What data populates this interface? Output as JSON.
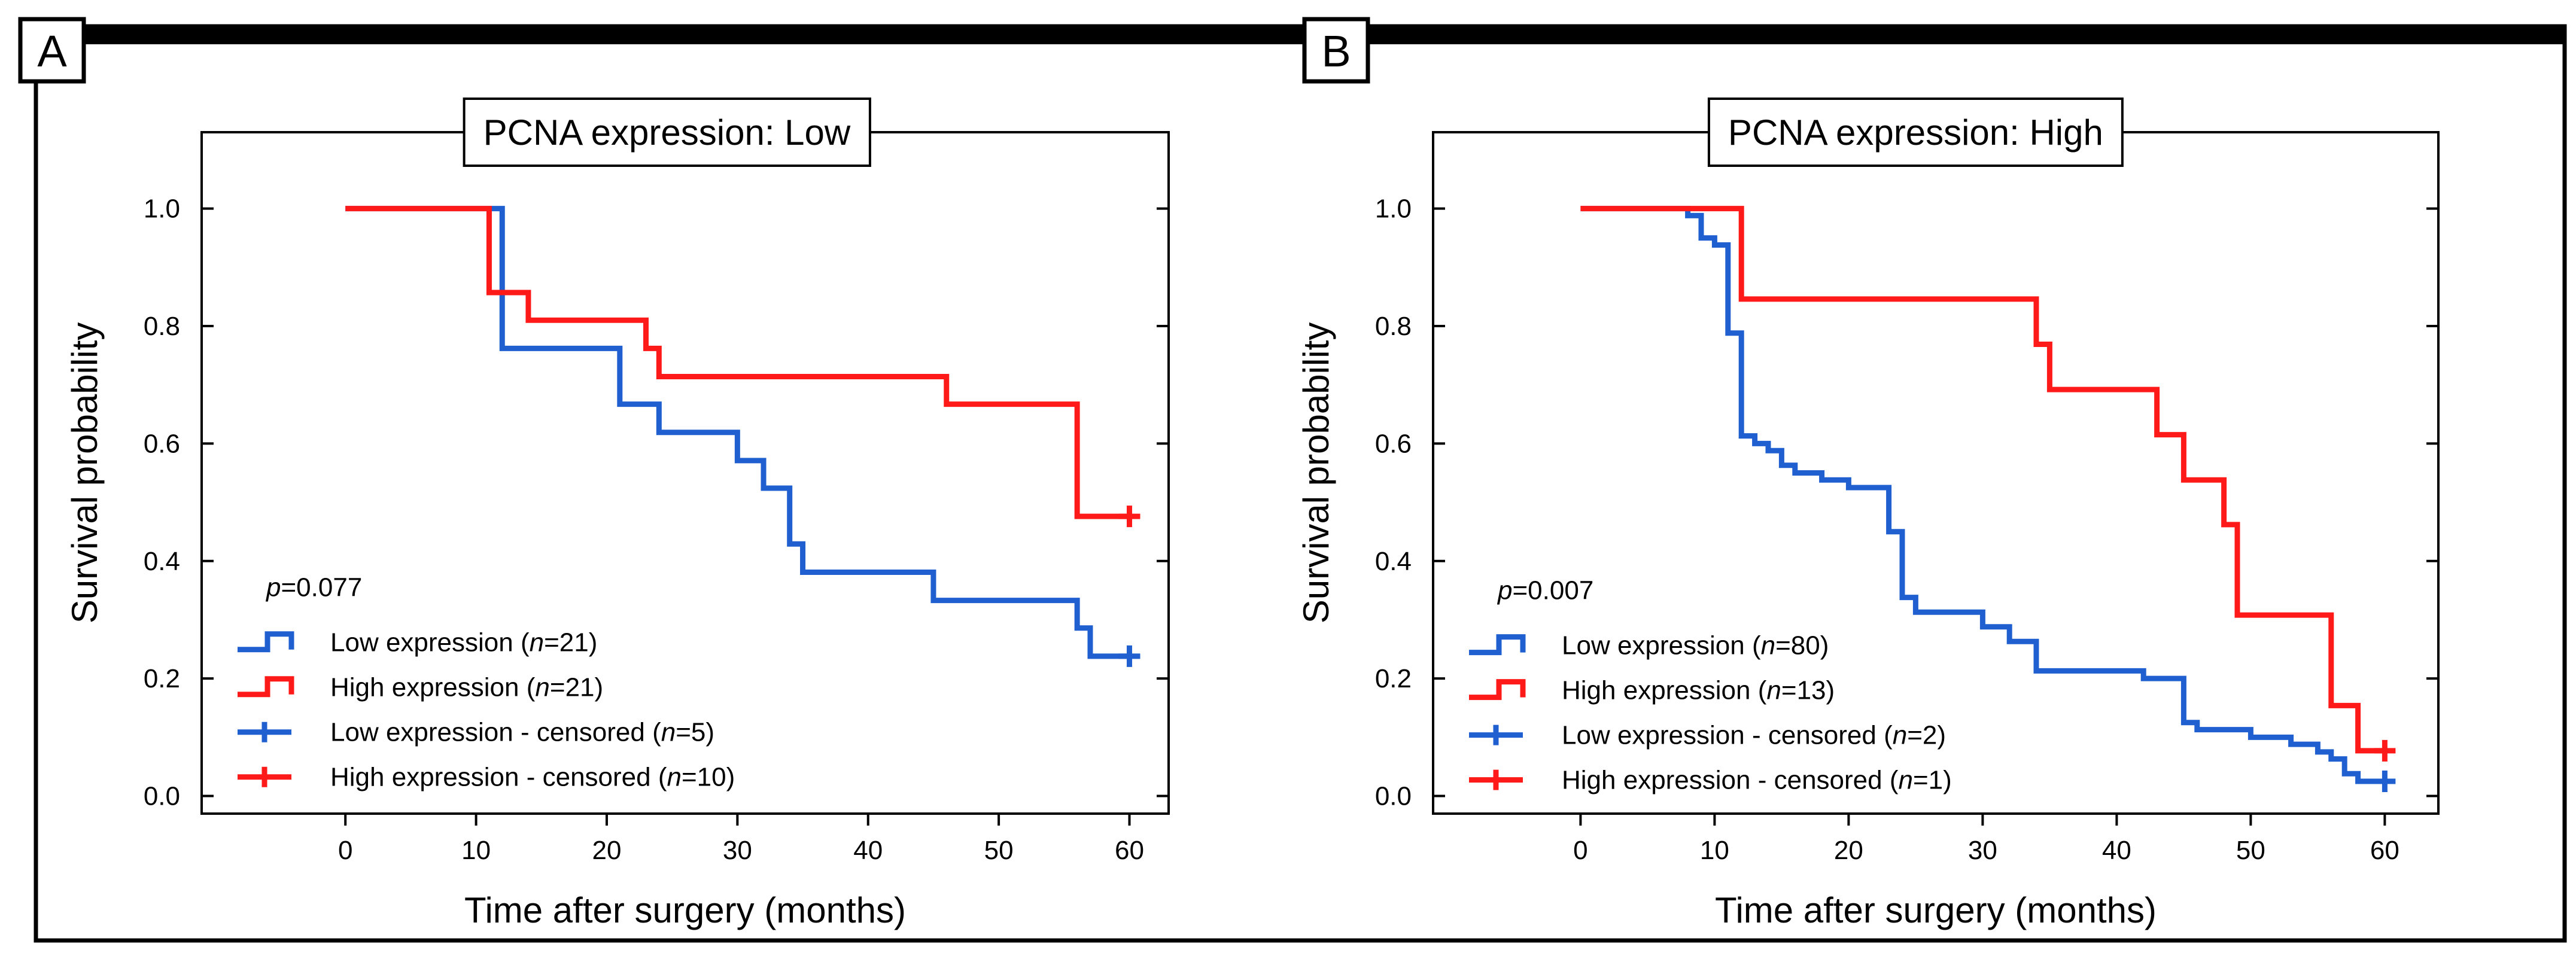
{
  "chart_data": [
    {
      "type": "line",
      "panel_label": "A",
      "title": "PCNA expression: Low",
      "xlabel": "Time after surgery (months)",
      "ylabel": "Survival probability",
      "xlim": [
        -11,
        63
      ],
      "ylim": [
        -0.03,
        1.13
      ],
      "xticks": [
        "0",
        "10",
        "20",
        "30",
        "40",
        "50",
        "60"
      ],
      "yticks": [
        "0.0",
        "0.2",
        "0.4",
        "0.6",
        "0.8",
        "1.0"
      ],
      "grid": false,
      "legend_position": "bottom-left",
      "p_value": {
        "italic": "p",
        "rest": "=0.077"
      },
      "series": [
        {
          "name": "Low expression",
          "color": "#1f5fd0",
          "steps": [
            [
              0,
              1.0
            ],
            [
              12,
              0.762
            ],
            [
              21,
              0.667
            ],
            [
              24,
              0.619
            ],
            [
              30,
              0.571
            ],
            [
              32,
              0.524
            ],
            [
              34,
              0.429
            ],
            [
              35,
              0.381
            ],
            [
              45,
              0.333
            ],
            [
              56,
              0.286
            ],
            [
              57,
              0.238
            ],
            [
              60,
              0.238
            ]
          ],
          "censored": [
            [
              60,
              0.238
            ]
          ]
        },
        {
          "name": "High expression",
          "color": "#ff1a1a",
          "steps": [
            [
              0,
              1.0
            ],
            [
              11,
              0.857
            ],
            [
              14,
              0.81
            ],
            [
              23,
              0.762
            ],
            [
              24,
              0.714
            ],
            [
              46,
              0.667
            ],
            [
              56,
              0.476
            ],
            [
              60,
              0.476
            ]
          ],
          "censored": [
            [
              60,
              0.476
            ]
          ]
        }
      ],
      "legend": [
        {
          "kind": "step",
          "color": "#1f5fd0",
          "name": "Low expression",
          "n_text": "=21)"
        },
        {
          "kind": "step",
          "color": "#ff1a1a",
          "name": "High expression",
          "n_text": "=21)"
        },
        {
          "kind": "censor",
          "color": "#1f5fd0",
          "name": "Low expression - censored",
          "n_text": "=5)"
        },
        {
          "kind": "censor",
          "color": "#ff1a1a",
          "name": "High expression - censored",
          "n_text": "=10)"
        }
      ]
    },
    {
      "type": "line",
      "panel_label": "B",
      "title": "PCNA expression: High",
      "xlabel": "Time after surgery (months)",
      "ylabel": "Survival probability",
      "xlim": [
        -11,
        64
      ],
      "ylim": [
        -0.03,
        1.13
      ],
      "xticks": [
        "0",
        "10",
        "20",
        "30",
        "40",
        "50",
        "60"
      ],
      "yticks": [
        "0.0",
        "0.2",
        "0.4",
        "0.6",
        "0.8",
        "1.0"
      ],
      "grid": false,
      "legend_position": "bottom-left",
      "p_value": {
        "italic": "p",
        "rest": "=0.007"
      },
      "series": [
        {
          "name": "Low expression",
          "color": "#1f5fd0",
          "steps": [
            [
              0,
              1.0
            ],
            [
              8,
              0.988
            ],
            [
              9,
              0.95
            ],
            [
              10,
              0.938
            ],
            [
              11,
              0.788
            ],
            [
              12,
              0.613
            ],
            [
              13,
              0.6
            ],
            [
              14,
              0.588
            ],
            [
              15,
              0.563
            ],
            [
              16,
              0.55
            ],
            [
              18,
              0.538
            ],
            [
              20,
              0.525
            ],
            [
              23,
              0.45
            ],
            [
              24,
              0.338
            ],
            [
              25,
              0.313
            ],
            [
              30,
              0.288
            ],
            [
              32,
              0.263
            ],
            [
              34,
              0.213
            ],
            [
              42,
              0.2
            ],
            [
              45,
              0.125
            ],
            [
              46,
              0.113
            ],
            [
              50,
              0.1
            ],
            [
              53,
              0.088
            ],
            [
              55,
              0.075
            ],
            [
              56,
              0.063
            ],
            [
              57,
              0.038
            ],
            [
              58,
              0.025
            ],
            [
              60,
              0.025
            ]
          ],
          "censored": [
            [
              60,
              0.025
            ]
          ]
        },
        {
          "name": "High expression",
          "color": "#ff1a1a",
          "steps": [
            [
              0,
              1.0
            ],
            [
              12,
              0.846
            ],
            [
              34,
              0.769
            ],
            [
              35,
              0.692
            ],
            [
              43,
              0.615
            ],
            [
              45,
              0.538
            ],
            [
              48,
              0.462
            ],
            [
              49,
              0.308
            ],
            [
              56,
              0.154
            ],
            [
              58,
              0.077
            ],
            [
              60,
              0.077
            ]
          ],
          "censored": [
            [
              60,
              0.077
            ]
          ]
        }
      ],
      "legend": [
        {
          "kind": "step",
          "color": "#1f5fd0",
          "name": "Low expression",
          "n_text": "=80)"
        },
        {
          "kind": "step",
          "color": "#ff1a1a",
          "name": "High expression",
          "n_text": "=13)"
        },
        {
          "kind": "censor",
          "color": "#1f5fd0",
          "name": "Low expression - censored",
          "n_text": "=2)"
        },
        {
          "kind": "censor",
          "color": "#ff1a1a",
          "name": "High expression - censored",
          "n_text": "=1)"
        }
      ]
    }
  ]
}
